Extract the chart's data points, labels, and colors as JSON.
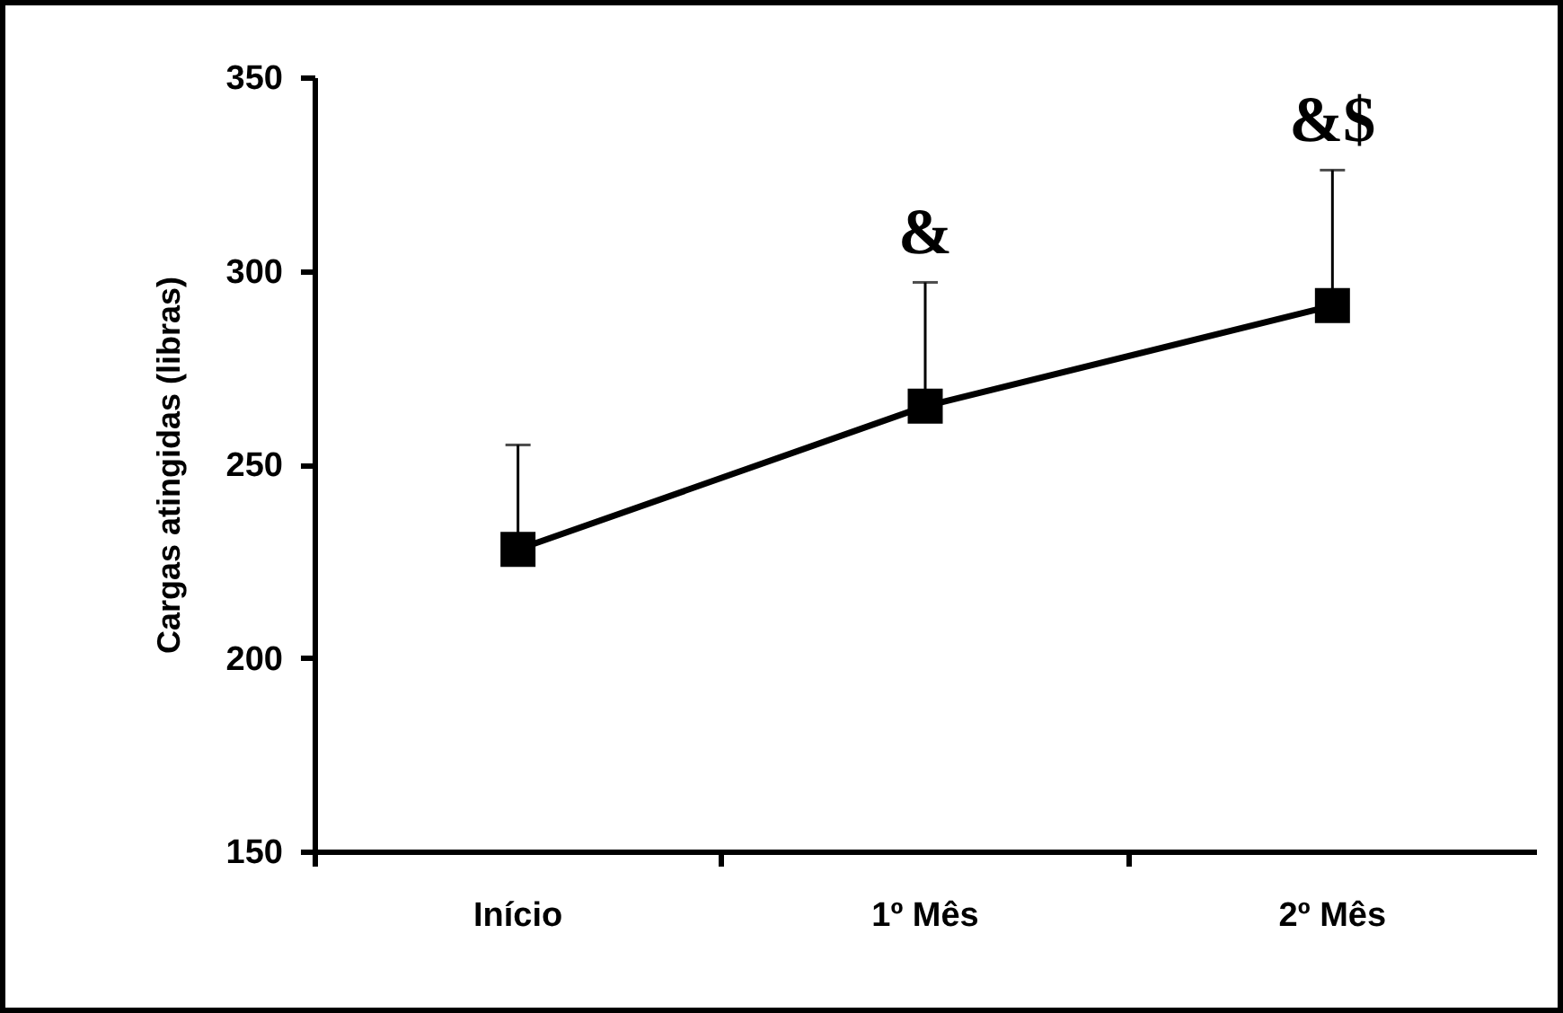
{
  "chart_data": {
    "type": "line",
    "ylabel": "Cargas atingidas (libras)",
    "categories": [
      "Início",
      "1º Mês",
      "2º Mês"
    ],
    "series": [
      {
        "color": "#000000",
        "values": [
          228,
          265,
          291
        ],
        "errors": [
          [
            228,
            255
          ],
          [
            265,
            297
          ],
          [
            291,
            326
          ]
        ]
      }
    ],
    "ylim": [
      150,
      350
    ],
    "yticks": [
      150,
      200,
      250,
      300,
      350
    ],
    "grid": false,
    "marker": "square",
    "line_style": "solid",
    "annotations": [
      {
        "text": "&",
        "x": "1º Mês",
        "y": 297
      },
      {
        "text": "&$",
        "x": "2º Mês",
        "y": 326
      }
    ]
  }
}
